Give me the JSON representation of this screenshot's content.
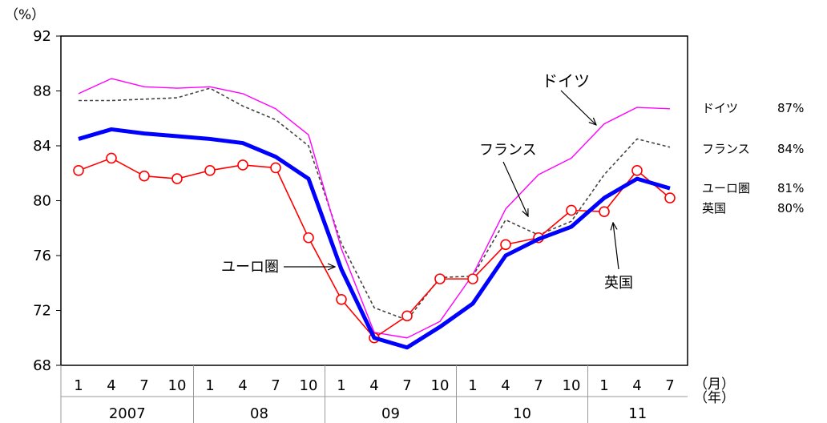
{
  "chart_data": {
    "type": "line",
    "y_unit_label": "（%）",
    "ylim": [
      68,
      92
    ],
    "yticks": [
      68,
      72,
      76,
      80,
      84,
      88,
      92
    ],
    "x_month_labels": [
      "1",
      "4",
      "7",
      "10",
      "1",
      "4",
      "7",
      "10",
      "1",
      "4",
      "7",
      "10",
      "1",
      "4",
      "7",
      "10",
      "1",
      "4",
      "7"
    ],
    "x_year_labels": [
      "2007",
      "08",
      "09",
      "10",
      "11"
    ],
    "x_month_unit": "（月）",
    "x_year_unit": "（年）",
    "grid": false,
    "series": [
      {
        "name": "ドイツ",
        "color": "#ff00ff",
        "style": "thin",
        "values": [
          87.8,
          88.9,
          88.3,
          88.2,
          88.3,
          87.8,
          86.7,
          84.8,
          76.5,
          70.4,
          70.0,
          71.2,
          74.6,
          79.4,
          81.9,
          83.1,
          85.6,
          86.8,
          86.7
        ]
      },
      {
        "name": "フランス",
        "color": "#444444",
        "style": "dashed",
        "values": [
          87.3,
          87.3,
          87.4,
          87.5,
          88.2,
          86.9,
          85.9,
          84.0,
          76.9,
          72.2,
          71.3,
          74.4,
          74.5,
          78.6,
          77.5,
          78.5,
          81.9,
          84.5,
          83.9
        ]
      },
      {
        "name": "ユーロ圏",
        "color": "#0000ff",
        "style": "thick",
        "values": [
          84.5,
          85.2,
          84.9,
          84.7,
          84.5,
          84.2,
          83.2,
          81.6,
          75.0,
          70.0,
          69.3,
          70.8,
          72.5,
          76.0,
          77.2,
          78.1,
          80.2,
          81.6,
          80.9
        ]
      },
      {
        "name": "英国",
        "color": "#ff0000",
        "style": "markers",
        "values": [
          82.2,
          83.1,
          81.8,
          81.6,
          82.2,
          82.6,
          82.4,
          77.3,
          72.8,
          70.0,
          71.6,
          74.3,
          74.3,
          76.8,
          77.3,
          79.3,
          79.2,
          82.2,
          80.2
        ]
      }
    ],
    "annotations": [
      {
        "text": "ドイツ",
        "series": "ドイツ"
      },
      {
        "text": "フランス",
        "series": "フランス"
      },
      {
        "text": "ユーロ圏",
        "series": "ユーロ圏"
      },
      {
        "text": "英国",
        "series": "英国"
      }
    ],
    "end_labels": [
      {
        "name": "ドイツ",
        "value": "87%"
      },
      {
        "name": "フランス",
        "value": "84%"
      },
      {
        "name": "ユーロ圏",
        "value": "81%"
      },
      {
        "name": "英国",
        "value": "80%"
      }
    ]
  }
}
